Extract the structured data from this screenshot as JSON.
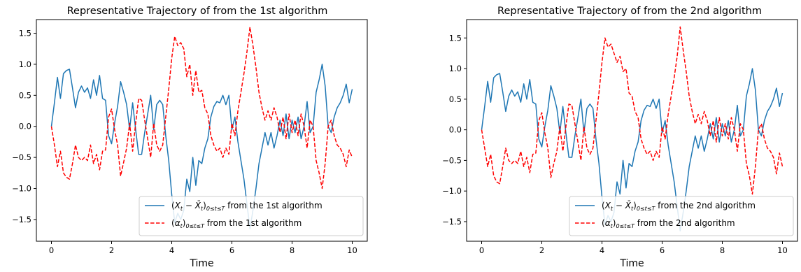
{
  "chart_data": [
    {
      "type": "line",
      "title": "Representative Trajectory of  from the 1st algorithm",
      "xlabel": "Time",
      "ylabel": "",
      "xlim": [
        -0.5,
        10.5
      ],
      "ylim": [
        -1.85,
        1.72
      ],
      "xticks": [
        0,
        2,
        4,
        6,
        8,
        10
      ],
      "xtick_labels": [
        "0",
        "2",
        "4",
        "6",
        "8",
        "10"
      ],
      "yticks": [
        -1.5,
        -1.0,
        -0.5,
        0.0,
        0.5,
        1.0,
        1.5
      ],
      "ytick_labels": [
        "−1.5",
        "−1.0",
        "−0.5",
        "0.0",
        "0.5",
        "1.0",
        "1.5"
      ],
      "grid": false,
      "legend_position": "lower-right",
      "series": [
        {
          "name": "(X_t − X̄_t)_{0≤t≤T} from the 1st algorithm",
          "color": "#1f77b4",
          "dash": "solid",
          "x": [
            0.0,
            0.1,
            0.2,
            0.3,
            0.4,
            0.5,
            0.6,
            0.7,
            0.8,
            0.9,
            1.0,
            1.1,
            1.2,
            1.3,
            1.4,
            1.5,
            1.6,
            1.7,
            1.8,
            1.9,
            2.0,
            2.1,
            2.2,
            2.3,
            2.4,
            2.5,
            2.6,
            2.7,
            2.8,
            2.9,
            3.0,
            3.1,
            3.2,
            3.3,
            3.4,
            3.5,
            3.6,
            3.7,
            3.8,
            3.9,
            4.0,
            4.1,
            4.2,
            4.3,
            4.4,
            4.5,
            4.6,
            4.7,
            4.8,
            4.9,
            5.0,
            5.1,
            5.2,
            5.3,
            5.4,
            5.5,
            5.6,
            5.7,
            5.8,
            5.9,
            6.0,
            6.1,
            6.2,
            6.3,
            6.4,
            6.5,
            6.6,
            6.7,
            6.8,
            6.9,
            7.0,
            7.1,
            7.2,
            7.3,
            7.4,
            7.5,
            7.6,
            7.7,
            7.8,
            7.9,
            8.0,
            8.1,
            8.2,
            8.3,
            8.4,
            8.5,
            8.6,
            8.7,
            8.8,
            8.9,
            9.0,
            9.1,
            9.2,
            9.3,
            9.4,
            9.5,
            9.6,
            9.7,
            9.8,
            9.9,
            10.0
          ],
          "y": [
            0.0,
            0.38,
            0.79,
            0.45,
            0.85,
            0.9,
            0.92,
            0.62,
            0.3,
            0.55,
            0.65,
            0.55,
            0.62,
            0.45,
            0.75,
            0.5,
            0.82,
            0.45,
            0.42,
            -0.15,
            -0.28,
            0.05,
            0.32,
            0.72,
            0.55,
            0.35,
            -0.05,
            0.38,
            -0.05,
            -0.45,
            -0.45,
            -0.1,
            0.2,
            0.5,
            -0.05,
            0.35,
            0.42,
            0.35,
            -0.15,
            -0.55,
            -1.1,
            -1.55,
            -1.4,
            -1.5,
            -1.35,
            -0.85,
            -1.05,
            -0.5,
            -0.95,
            -0.55,
            -0.6,
            -0.35,
            -0.2,
            0.15,
            0.32,
            0.4,
            0.38,
            0.5,
            0.35,
            0.5,
            -0.05,
            0.15,
            -0.25,
            -0.55,
            -0.85,
            -1.25,
            -1.65,
            -1.35,
            -1.0,
            -0.6,
            -0.35,
            -0.1,
            -0.3,
            -0.1,
            -0.35,
            -0.15,
            0.1,
            -0.15,
            0.2,
            -0.2,
            0.1,
            -0.1,
            0.15,
            -0.2,
            0.0,
            0.4,
            -0.1,
            0.0,
            0.55,
            0.75,
            1.0,
            0.65,
            0.0,
            -0.1,
            0.15,
            0.3,
            0.38,
            0.5,
            0.68,
            0.38,
            0.6
          ]
        },
        {
          "name": "(α_t)_{0≤t≤T} from the 1st algorithm",
          "color": "#ff0000",
          "dash": "dashed",
          "x": [
            0.0,
            0.1,
            0.2,
            0.3,
            0.4,
            0.5,
            0.6,
            0.7,
            0.8,
            0.9,
            1.0,
            1.1,
            1.2,
            1.3,
            1.4,
            1.5,
            1.6,
            1.7,
            1.8,
            1.9,
            2.0,
            2.1,
            2.2,
            2.3,
            2.4,
            2.5,
            2.6,
            2.7,
            2.8,
            2.9,
            3.0,
            3.1,
            3.2,
            3.3,
            3.4,
            3.5,
            3.6,
            3.7,
            3.8,
            3.9,
            4.0,
            4.1,
            4.2,
            4.3,
            4.4,
            4.5,
            4.6,
            4.7,
            4.8,
            4.9,
            5.0,
            5.1,
            5.2,
            5.3,
            5.4,
            5.5,
            5.6,
            5.7,
            5.8,
            5.9,
            6.0,
            6.1,
            6.2,
            6.3,
            6.4,
            6.5,
            6.6,
            6.7,
            6.8,
            6.9,
            7.0,
            7.1,
            7.2,
            7.3,
            7.4,
            7.5,
            7.6,
            7.7,
            7.8,
            7.9,
            8.0,
            8.1,
            8.2,
            8.3,
            8.4,
            8.5,
            8.6,
            8.7,
            8.8,
            8.9,
            9.0,
            9.1,
            9.2,
            9.3,
            9.4,
            9.5,
            9.6,
            9.7,
            9.8,
            9.9,
            10.0
          ],
          "y": [
            0.0,
            -0.3,
            -0.65,
            -0.4,
            -0.75,
            -0.82,
            -0.85,
            -0.6,
            -0.3,
            -0.5,
            -0.55,
            -0.5,
            -0.55,
            -0.3,
            -0.6,
            -0.45,
            -0.7,
            -0.4,
            -0.38,
            0.15,
            0.28,
            -0.05,
            -0.3,
            -0.8,
            -0.58,
            -0.35,
            0.05,
            -0.4,
            0.05,
            0.45,
            0.42,
            0.1,
            -0.2,
            -0.5,
            0.05,
            -0.3,
            -0.4,
            -0.3,
            0.15,
            0.6,
            1.1,
            1.45,
            1.3,
            1.35,
            1.25,
            0.8,
            1.0,
            0.5,
            0.9,
            0.55,
            0.58,
            0.3,
            0.2,
            -0.15,
            -0.3,
            -0.4,
            -0.35,
            -0.5,
            -0.35,
            -0.45,
            0.05,
            -0.15,
            0.25,
            0.55,
            0.85,
            1.2,
            1.6,
            1.3,
            0.95,
            0.55,
            0.3,
            0.1,
            0.25,
            0.1,
            0.3,
            0.15,
            -0.1,
            0.15,
            -0.2,
            0.2,
            -0.1,
            0.1,
            -0.15,
            0.2,
            0.0,
            -0.35,
            0.1,
            0.0,
            -0.55,
            -0.75,
            -1.0,
            -0.6,
            0.0,
            0.1,
            -0.15,
            -0.3,
            -0.35,
            -0.45,
            -0.65,
            -0.38,
            -0.5
          ]
        }
      ]
    },
    {
      "type": "line",
      "title": "Representative Trajectory of  from the 2nd algorithm",
      "xlabel": "Time",
      "ylabel": "",
      "xlim": [
        -0.5,
        10.5
      ],
      "ylim": [
        -1.82,
        1.8
      ],
      "xticks": [
        0,
        2,
        4,
        6,
        8,
        10
      ],
      "xtick_labels": [
        "0",
        "2",
        "4",
        "6",
        "8",
        "10"
      ],
      "yticks": [
        -1.5,
        -1.0,
        -0.5,
        0.0,
        0.5,
        1.0,
        1.5
      ],
      "ytick_labels": [
        "−1.5",
        "−1.0",
        "−0.5",
        "0.0",
        "0.5",
        "1.0",
        "1.5"
      ],
      "grid": false,
      "legend_position": "lower-right",
      "series": [
        {
          "name": "(X_t − X̄_t)_{0≤t≤T} from the 2nd algorithm",
          "color": "#1f77b4",
          "dash": "solid",
          "x": [
            0.0,
            0.1,
            0.2,
            0.3,
            0.4,
            0.5,
            0.6,
            0.7,
            0.8,
            0.9,
            1.0,
            1.1,
            1.2,
            1.3,
            1.4,
            1.5,
            1.6,
            1.7,
            1.8,
            1.9,
            2.0,
            2.1,
            2.2,
            2.3,
            2.4,
            2.5,
            2.6,
            2.7,
            2.8,
            2.9,
            3.0,
            3.1,
            3.2,
            3.3,
            3.4,
            3.5,
            3.6,
            3.7,
            3.8,
            3.9,
            4.0,
            4.1,
            4.2,
            4.3,
            4.4,
            4.5,
            4.6,
            4.7,
            4.8,
            4.9,
            5.0,
            5.1,
            5.2,
            5.3,
            5.4,
            5.5,
            5.6,
            5.7,
            5.8,
            5.9,
            6.0,
            6.1,
            6.2,
            6.3,
            6.4,
            6.5,
            6.6,
            6.7,
            6.8,
            6.9,
            7.0,
            7.1,
            7.2,
            7.3,
            7.4,
            7.5,
            7.6,
            7.7,
            7.8,
            7.9,
            8.0,
            8.1,
            8.2,
            8.3,
            8.4,
            8.5,
            8.6,
            8.7,
            8.8,
            8.9,
            9.0,
            9.1,
            9.2,
            9.3,
            9.4,
            9.5,
            9.6,
            9.7,
            9.8,
            9.9,
            10.0
          ],
          "y": [
            0.0,
            0.38,
            0.79,
            0.45,
            0.85,
            0.9,
            0.92,
            0.62,
            0.3,
            0.55,
            0.65,
            0.55,
            0.62,
            0.45,
            0.75,
            0.5,
            0.82,
            0.45,
            0.42,
            -0.15,
            -0.28,
            0.05,
            0.32,
            0.72,
            0.55,
            0.35,
            -0.05,
            0.38,
            -0.05,
            -0.45,
            -0.45,
            -0.1,
            0.2,
            0.5,
            -0.05,
            0.35,
            0.42,
            0.35,
            -0.15,
            -0.55,
            -1.1,
            -1.55,
            -1.4,
            -1.5,
            -1.35,
            -0.85,
            -1.05,
            -0.5,
            -0.95,
            -0.55,
            -0.6,
            -0.35,
            -0.2,
            0.15,
            0.32,
            0.4,
            0.38,
            0.5,
            0.35,
            0.5,
            -0.05,
            0.15,
            -0.25,
            -0.55,
            -0.85,
            -1.25,
            -1.65,
            -1.35,
            -1.0,
            -0.6,
            -0.35,
            -0.1,
            -0.3,
            -0.1,
            -0.35,
            -0.15,
            0.1,
            -0.15,
            0.2,
            -0.2,
            0.1,
            -0.1,
            0.15,
            -0.2,
            0.0,
            0.4,
            -0.1,
            0.0,
            0.55,
            0.75,
            1.0,
            0.65,
            0.0,
            -0.1,
            0.15,
            0.3,
            0.38,
            0.5,
            0.68,
            0.38,
            0.6
          ]
        },
        {
          "name": "(α_t)_{0≤t≤T} from the 2nd algorithm",
          "color": "#ff0000",
          "dash": "dashed",
          "x": [
            0.0,
            0.1,
            0.2,
            0.3,
            0.4,
            0.5,
            0.6,
            0.7,
            0.8,
            0.9,
            1.0,
            1.1,
            1.2,
            1.3,
            1.4,
            1.5,
            1.6,
            1.7,
            1.8,
            1.9,
            2.0,
            2.1,
            2.2,
            2.3,
            2.4,
            2.5,
            2.6,
            2.7,
            2.8,
            2.9,
            3.0,
            3.1,
            3.2,
            3.3,
            3.4,
            3.5,
            3.6,
            3.7,
            3.8,
            3.9,
            4.0,
            4.1,
            4.2,
            4.3,
            4.4,
            4.5,
            4.6,
            4.7,
            4.8,
            4.9,
            5.0,
            5.1,
            5.2,
            5.3,
            5.4,
            5.5,
            5.6,
            5.7,
            5.8,
            5.9,
            6.0,
            6.1,
            6.2,
            6.3,
            6.4,
            6.5,
            6.6,
            6.7,
            6.8,
            6.9,
            7.0,
            7.1,
            7.2,
            7.3,
            7.4,
            7.5,
            7.6,
            7.7,
            7.8,
            7.9,
            8.0,
            8.1,
            8.2,
            8.3,
            8.4,
            8.5,
            8.6,
            8.7,
            8.8,
            8.9,
            9.0,
            9.1,
            9.2,
            9.3,
            9.4,
            9.5,
            9.6,
            9.7,
            9.8,
            9.9,
            10.0
          ],
          "y": [
            0.0,
            -0.3,
            -0.6,
            -0.4,
            -0.75,
            -0.85,
            -0.88,
            -0.6,
            -0.3,
            -0.5,
            -0.55,
            -0.5,
            -0.55,
            -0.35,
            -0.6,
            -0.45,
            -0.7,
            -0.4,
            -0.38,
            0.15,
            0.28,
            -0.05,
            -0.3,
            -0.78,
            -0.55,
            -0.35,
            0.05,
            -0.35,
            0.05,
            0.42,
            0.4,
            0.1,
            -0.2,
            -0.5,
            0.05,
            -0.3,
            -0.4,
            -0.3,
            0.15,
            0.6,
            1.1,
            1.5,
            1.35,
            1.4,
            1.25,
            1.1,
            1.2,
            0.95,
            1.0,
            0.6,
            0.55,
            0.3,
            0.2,
            -0.15,
            -0.3,
            -0.4,
            -0.35,
            -0.5,
            -0.35,
            -0.45,
            0.05,
            -0.15,
            0.25,
            0.55,
            0.85,
            1.2,
            1.68,
            1.3,
            0.95,
            0.55,
            0.3,
            0.1,
            0.25,
            0.1,
            0.3,
            0.15,
            -0.1,
            0.15,
            -0.2,
            0.2,
            -0.1,
            0.1,
            -0.15,
            0.2,
            0.0,
            -0.35,
            0.1,
            0.0,
            -0.55,
            -0.75,
            -1.05,
            -0.6,
            0.0,
            0.1,
            -0.15,
            -0.3,
            -0.35,
            -0.45,
            -0.72,
            -0.38,
            -0.6
          ]
        }
      ]
    }
  ]
}
